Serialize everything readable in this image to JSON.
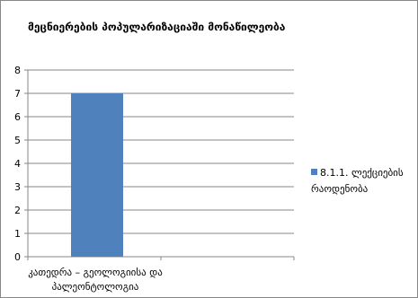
{
  "chart_data": {
    "type": "bar",
    "title": "მეცნიერების პოპულარიზაციაში მონაწილეობა",
    "categories": [
      "კათედრა – გეოლოგიისა და პალეონტოლოგია"
    ],
    "series": [
      {
        "name": "8.1.1. ლექციების რაოდენობა",
        "values": [
          7
        ],
        "color": "#4f81bd"
      }
    ],
    "ylim": [
      0,
      8
    ],
    "yticks": [
      0,
      1,
      2,
      3,
      4,
      5,
      6,
      7,
      8
    ],
    "grid": true,
    "legend": "right",
    "xlabel": "",
    "ylabel": ""
  }
}
